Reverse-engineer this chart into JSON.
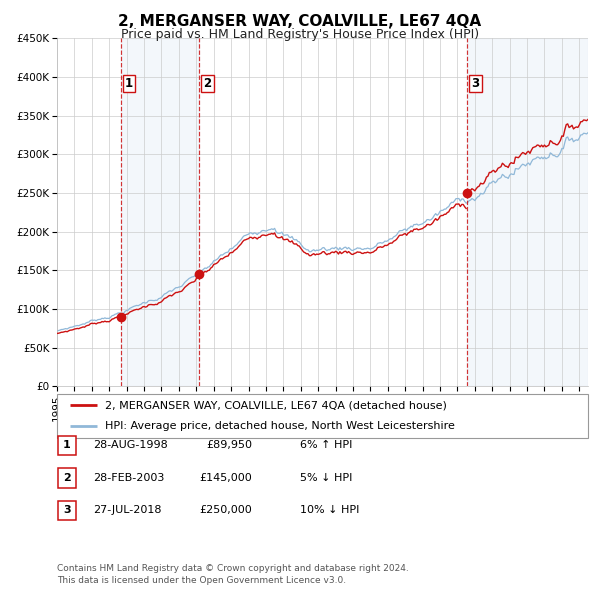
{
  "title": "2, MERGANSER WAY, COALVILLE, LE67 4QA",
  "subtitle": "Price paid vs. HM Land Registry's House Price Index (HPI)",
  "ylim": [
    0,
    450000
  ],
  "yticks": [
    0,
    50000,
    100000,
    150000,
    200000,
    250000,
    300000,
    350000,
    400000,
    450000
  ],
  "ytick_labels": [
    "£0",
    "£50K",
    "£100K",
    "£150K",
    "£200K",
    "£250K",
    "£300K",
    "£350K",
    "£400K",
    "£450K"
  ],
  "xlim_start": 1995.0,
  "xlim_end": 2025.5,
  "hpi_color": "#90b8d8",
  "price_color": "#cc1111",
  "background_color": "#ffffff",
  "plot_bg_color": "#ffffff",
  "grid_color": "#cccccc",
  "shade_color": "#ccddf0",
  "sale_points": [
    {
      "year": 1998.648,
      "price": 89950,
      "label": "1"
    },
    {
      "year": 2003.164,
      "price": 145000,
      "label": "2"
    },
    {
      "year": 2018.56,
      "price": 250000,
      "label": "3"
    }
  ],
  "sale_ranges": [
    {
      "start": 1998.648,
      "end": 2003.164
    },
    {
      "start": 2018.56,
      "end": 2025.5
    }
  ],
  "legend_line1": "2, MERGANSER WAY, COALVILLE, LE67 4QA (detached house)",
  "legend_line2": "HPI: Average price, detached house, North West Leicestershire",
  "table_rows": [
    {
      "num": "1",
      "date": "28-AUG-1998",
      "price": "£89,950",
      "change": "6% ↑ HPI"
    },
    {
      "num": "2",
      "date": "28-FEB-2003",
      "price": "£145,000",
      "change": "5% ↓ HPI"
    },
    {
      "num": "3",
      "date": "27-JUL-2018",
      "price": "£250,000",
      "change": "10% ↓ HPI"
    }
  ],
  "footer": "Contains HM Land Registry data © Crown copyright and database right 2024.\nThis data is licensed under the Open Government Licence v3.0.",
  "title_fontsize": 11,
  "subtitle_fontsize": 9,
  "tick_fontsize": 7.5,
  "legend_fontsize": 8,
  "table_fontsize": 8,
  "footer_fontsize": 6.5
}
